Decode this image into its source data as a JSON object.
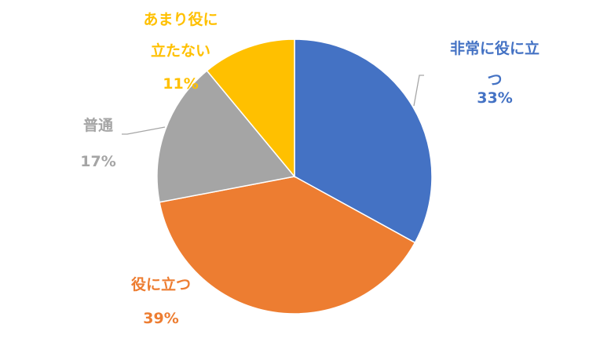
{
  "chart_data": {
    "type": "pie",
    "categories": [
      "非常に役に立つ",
      "役に立つ",
      "普通",
      "あまり役に\n立たない"
    ],
    "values": [
      33,
      39,
      17,
      11
    ],
    "value_labels": [
      "33%",
      "39%",
      "17%",
      "11%"
    ],
    "colors": [
      "#4472c4",
      "#ed7d31",
      "#a5a5a5",
      "#ffc000"
    ]
  }
}
